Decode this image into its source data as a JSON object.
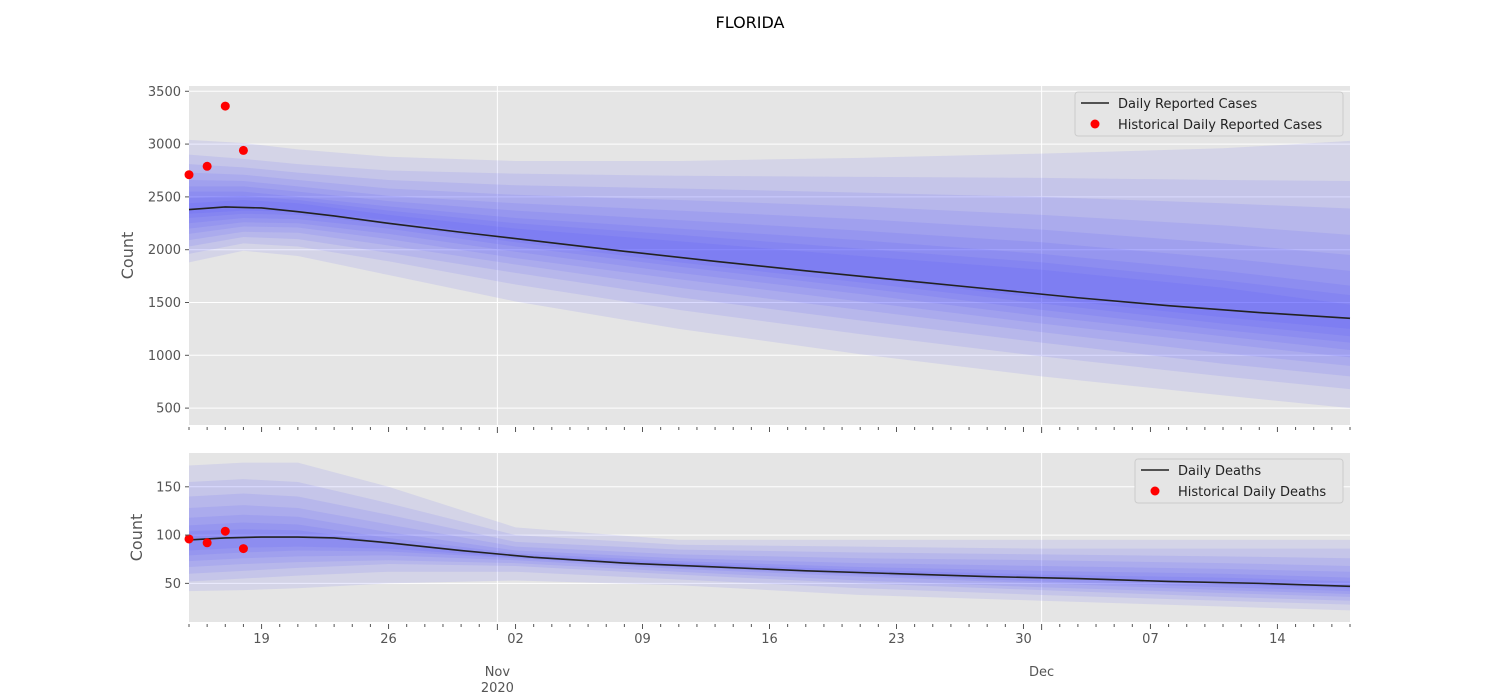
{
  "chart_data": {
    "type": "line",
    "title": "FLORIDA",
    "x_start": "2020-10-14",
    "x_end": "2020-12-17",
    "x_tick_labels": [
      {
        "date": "2020-10-18",
        "label": "19"
      },
      {
        "date": "2020-10-25",
        "label": "26"
      },
      {
        "date": "2020-11-01",
        "label": "02"
      },
      {
        "date": "2020-11-08",
        "label": "09"
      },
      {
        "date": "2020-11-15",
        "label": "16"
      },
      {
        "date": "2020-11-22",
        "label": "23"
      },
      {
        "date": "2020-11-29",
        "label": "30"
      },
      {
        "date": "2020-12-06",
        "label": "07"
      },
      {
        "date": "2020-12-13",
        "label": "14"
      }
    ],
    "x_major_labels": [
      {
        "date": "2020-10-31",
        "label": "Nov",
        "sublabel": "2020"
      },
      {
        "date": "2020-11-30",
        "label": "Dec",
        "sublabel": ""
      }
    ],
    "colors": {
      "panel_bg": "#e5e5e5",
      "grid": "#ffffff",
      "band": "#4040ff",
      "median": "#222222",
      "historical": "#ff0000"
    },
    "panels": [
      {
        "ylabel": "Count",
        "ylim": [
          340,
          3550
        ],
        "yticks": [
          500,
          1000,
          1500,
          2000,
          2500,
          3000,
          3500
        ],
        "legend_position": "top-right",
        "legend": {
          "line_label": "Daily Reported Cases",
          "points_label": "Historical Daily Reported Cases"
        },
        "median": {
          "x": [
            "2020-10-14",
            "2020-10-16",
            "2020-10-18",
            "2020-10-20",
            "2020-10-22",
            "2020-10-25",
            "2020-10-29",
            "2020-11-02",
            "2020-11-07",
            "2020-11-12",
            "2020-11-17",
            "2020-11-22",
            "2020-11-27",
            "2020-12-02",
            "2020-12-07",
            "2020-12-12",
            "2020-12-17"
          ],
          "y": [
            2380,
            2405,
            2395,
            2360,
            2320,
            2250,
            2165,
            2085,
            1985,
            1890,
            1800,
            1715,
            1630,
            1545,
            1470,
            1405,
            1350
          ]
        },
        "bands": {
          "x": [
            "2020-10-14",
            "2020-10-17",
            "2020-10-20",
            "2020-10-25",
            "2020-11-01",
            "2020-11-10",
            "2020-11-20",
            "2020-11-30",
            "2020-12-10",
            "2020-12-17"
          ],
          "lower": [
            [
              1880,
              1990,
              1940,
              1760,
              1510,
              1250,
              1010,
              800,
              620,
              500
            ],
            [
              1960,
              2060,
              2030,
              1890,
              1670,
              1430,
              1200,
              990,
              800,
              680
            ],
            [
              2030,
              2120,
              2100,
              1970,
              1780,
              1550,
              1330,
              1120,
              920,
              800
            ],
            [
              2090,
              2170,
              2160,
              2040,
              1860,
              1640,
              1430,
              1220,
              1020,
              900
            ],
            [
              2150,
              2220,
              2210,
              2100,
              1920,
              1720,
              1510,
              1300,
              1110,
              980
            ],
            [
              2200,
              2260,
              2250,
              2150,
              1980,
              1780,
              1580,
              1370,
              1180,
              1050
            ],
            [
              2250,
              2300,
              2290,
              2200,
              2030,
              1840,
              1640,
              1430,
              1240,
              1120
            ],
            [
              2300,
              2340,
              2330,
              2240,
              2070,
              1880,
              1690,
              1490,
              1300,
              1180
            ],
            [
              2340,
              2370,
              2360,
              2280,
              2110,
              1930,
              1740,
              1540,
              1360,
              1250
            ]
          ],
          "upper": [
            [
              3040,
              3010,
              2950,
              2880,
              2840,
              2840,
              2870,
              2910,
              2960,
              3030
            ],
            [
              2900,
              2860,
              2810,
              2750,
              2720,
              2700,
              2690,
              2680,
              2660,
              2650
            ],
            [
              2810,
              2780,
              2730,
              2660,
              2610,
              2580,
              2540,
              2500,
              2440,
              2390
            ],
            [
              2730,
              2710,
              2660,
              2580,
              2520,
              2470,
              2410,
              2330,
              2230,
              2140
            ],
            [
              2660,
              2650,
              2600,
              2510,
              2440,
              2370,
              2290,
              2190,
              2060,
              1950
            ],
            [
              2600,
              2600,
              2550,
              2460,
              2370,
              2280,
              2180,
              2070,
              1920,
              1800
            ],
            [
              2550,
              2550,
              2500,
              2410,
              2300,
              2200,
              2090,
              1960,
              1800,
              1660
            ],
            [
              2490,
              2510,
              2470,
              2370,
              2250,
              2140,
              2010,
              1880,
              1710,
              1570
            ],
            [
              2440,
              2470,
              2440,
              2330,
              2200,
              2080,
              1940,
              1810,
              1640,
              1480
            ]
          ]
        },
        "historical": {
          "x": [
            "2020-10-14",
            "2020-10-15",
            "2020-10-16",
            "2020-10-17"
          ],
          "y": [
            2710,
            2790,
            3360,
            2940
          ]
        }
      },
      {
        "ylabel": "Count",
        "ylim": [
          10,
          185
        ],
        "yticks": [
          50,
          100,
          150
        ],
        "legend_position": "top-right",
        "legend": {
          "line_label": "Daily Deaths",
          "points_label": "Historical Daily Deaths"
        },
        "median": {
          "x": [
            "2020-10-14",
            "2020-10-16",
            "2020-10-18",
            "2020-10-20",
            "2020-10-22",
            "2020-10-25",
            "2020-10-29",
            "2020-11-02",
            "2020-11-07",
            "2020-11-12",
            "2020-11-17",
            "2020-11-22",
            "2020-11-27",
            "2020-12-02",
            "2020-12-07",
            "2020-12-12",
            "2020-12-17"
          ],
          "y": [
            95,
            97,
            98,
            98,
            97,
            92,
            84,
            77,
            71,
            67,
            63,
            60,
            57,
            55,
            52,
            50,
            47
          ]
        },
        "bands": {
          "x": [
            "2020-10-14",
            "2020-10-17",
            "2020-10-20",
            "2020-10-25",
            "2020-11-01",
            "2020-11-10",
            "2020-11-20",
            "2020-11-30",
            "2020-12-10",
            "2020-12-17"
          ],
          "lower": [
            [
              42,
              43,
              45,
              50,
              53,
              48,
              38,
              32,
              26,
              22
            ],
            [
              52,
              55,
              58,
              62,
              62,
              54,
              45,
              38,
              32,
              28
            ],
            [
              60,
              63,
              66,
              70,
              68,
              59,
              50,
              43,
              36,
              32
            ],
            [
              67,
              70,
              72,
              74,
              71,
              62,
              53,
              46,
              40,
              36
            ],
            [
              73,
              76,
              78,
              79,
              74,
              65,
              57,
              50,
              43,
              39
            ],
            [
              79,
              82,
              84,
              83,
              76,
              67,
              59,
              52,
              46,
              42
            ],
            [
              84,
              87,
              88,
              86,
              77,
              68,
              61,
              55,
              49,
              45
            ]
          ],
          "upper": [
            [
              172,
              175,
              175,
              150,
              108,
              95,
              95,
              95,
              95,
              95
            ],
            [
              155,
              158,
              155,
              133,
              100,
              90,
              88,
              86,
              86,
              86
            ],
            [
              140,
              143,
              140,
              121,
              93,
              85,
              82,
              80,
              78,
              76
            ],
            [
              128,
              131,
              128,
              111,
              88,
              80,
              76,
              74,
              71,
              68
            ],
            [
              118,
              121,
              119,
              103,
              84,
              76,
              71,
              68,
              65,
              62
            ],
            [
              110,
              113,
              111,
              97,
              81,
              73,
              67,
              63,
              60,
              56
            ],
            [
              104,
              106,
              105,
              93,
              79,
              71,
              64,
              59,
              56,
              52
            ]
          ]
        },
        "historical": {
          "x": [
            "2020-10-14",
            "2020-10-15",
            "2020-10-16",
            "2020-10-17"
          ],
          "y": [
            96,
            92,
            104,
            86
          ]
        }
      }
    ]
  }
}
